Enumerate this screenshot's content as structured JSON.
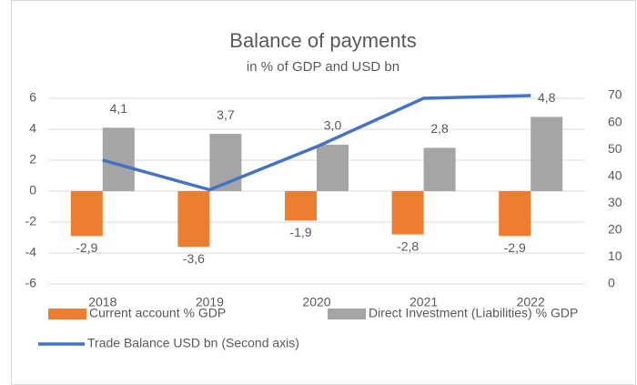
{
  "chart_data": {
    "type": "bar",
    "title": "Balance of payments",
    "subtitle": "in % of GDP and USD bn",
    "categories": [
      "2018",
      "2019",
      "2020",
      "2021",
      "2022"
    ],
    "series": [
      {
        "name": "Current account % GDP",
        "color": "#ed7d31",
        "values": [
          -2.9,
          -3.6,
          -1.9,
          -2.8,
          -2.9
        ],
        "value_labels": [
          "-2,9",
          "-3,6",
          "-1,9",
          "-2,8",
          "-2,9"
        ]
      },
      {
        "name": "Direct Investment (Liabilities) % GDP",
        "color": "#a5a5a5",
        "values": [
          4.1,
          3.7,
          3.0,
          2.8,
          4.8
        ],
        "value_labels": [
          "4,1",
          "3,7",
          "3,0",
          "2,8",
          "4,8"
        ]
      },
      {
        "name": "Trade Balance USD bn (Second axis)",
        "color": "#4472c4",
        "type": "line",
        "axis": "y2",
        "values": [
          46,
          35,
          51,
          69,
          70
        ]
      }
    ],
    "ylim": [
      -6,
      6
    ],
    "yticks": [
      -6,
      -4,
      -2,
      0,
      2,
      4,
      6
    ],
    "y2lim": [
      0,
      70
    ],
    "y2ticks": [
      0,
      10,
      20,
      30,
      40,
      50,
      60,
      70
    ],
    "grid": true,
    "legend": "bottom"
  }
}
